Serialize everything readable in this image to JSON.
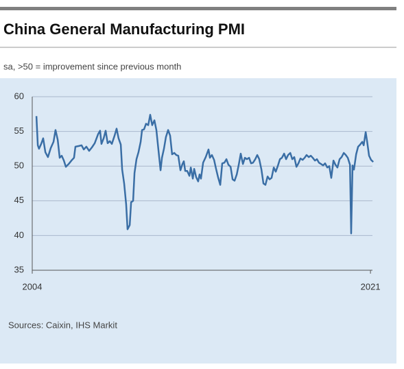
{
  "chart_data": {
    "type": "line",
    "title": "China General Manufacturing PMI",
    "subtitle": "sa, >50 = improvement since previous month",
    "source": "Sources: Caixin, IHS Markit",
    "xlim": [
      2004,
      2021.1
    ],
    "xticks": [
      2004,
      2021
    ],
    "ylim": [
      35,
      60
    ],
    "yticks": [
      35,
      40,
      45,
      50,
      55,
      60
    ],
    "grid": true,
    "series": [
      {
        "name": "PMI",
        "color": "#3a6ea5",
        "x": [
          2004.21,
          2004.28,
          2004.34,
          2004.45,
          2004.55,
          2004.66,
          2004.79,
          2004.93,
          2005.07,
          2005.17,
          2005.28,
          2005.38,
          2005.48,
          2005.59,
          2005.69,
          2005.83,
          2006.0,
          2006.1,
          2006.17,
          2006.34,
          2006.48,
          2006.59,
          2006.72,
          2006.86,
          2007.0,
          2007.14,
          2007.31,
          2007.41,
          2007.48,
          2007.59,
          2007.69,
          2007.79,
          2007.9,
          2008.0,
          2008.14,
          2008.24,
          2008.34,
          2008.45,
          2008.52,
          2008.62,
          2008.72,
          2008.79,
          2008.9,
          2008.97,
          2009.07,
          2009.14,
          2009.24,
          2009.34,
          2009.45,
          2009.52,
          2009.62,
          2009.72,
          2009.83,
          2009.93,
          2010.03,
          2010.14,
          2010.24,
          2010.34,
          2010.45,
          2010.52,
          2010.62,
          2010.72,
          2010.83,
          2010.93,
          2011.03,
          2011.14,
          2011.24,
          2011.34,
          2011.45,
          2011.55,
          2011.62,
          2011.69,
          2011.79,
          2011.9,
          2011.97,
          2012.07,
          2012.14,
          2012.24,
          2012.34,
          2012.41,
          2012.48,
          2012.59,
          2012.72,
          2012.86,
          2012.93,
          2013.03,
          2013.14,
          2013.24,
          2013.34,
          2013.45,
          2013.55,
          2013.66,
          2013.76,
          2013.86,
          2013.97,
          2014.07,
          2014.17,
          2014.28,
          2014.38,
          2014.48,
          2014.59,
          2014.69,
          2014.79,
          2014.9,
          2015.0,
          2015.1,
          2015.21,
          2015.31,
          2015.41,
          2015.52,
          2015.62,
          2015.72,
          2015.83,
          2015.93,
          2016.03,
          2016.14,
          2016.24,
          2016.34,
          2016.45,
          2016.55,
          2016.66,
          2016.76,
          2016.86,
          2016.97,
          2017.07,
          2017.17,
          2017.28,
          2017.38,
          2017.48,
          2017.59,
          2017.69,
          2017.79,
          2017.9,
          2018.0,
          2018.1,
          2018.21,
          2018.31,
          2018.41,
          2018.52,
          2018.62,
          2018.72,
          2018.83,
          2018.93,
          2019.03,
          2019.14,
          2019.24,
          2019.34,
          2019.45,
          2019.55,
          2019.66,
          2019.76,
          2019.86,
          2019.97,
          2020.03,
          2020.1,
          2020.17,
          2020.28,
          2020.38,
          2020.48,
          2020.59,
          2020.66,
          2020.76,
          2020.83,
          2020.93,
          2021.03,
          2021.14
        ],
        "values": [
          57.2,
          53,
          52.5,
          53.2,
          54,
          52,
          51.3,
          52.6,
          53.5,
          55.2,
          53.8,
          51.2,
          51.5,
          50.8,
          49.9,
          50.3,
          50.9,
          51.2,
          52.8,
          52.9,
          53,
          52.4,
          52.8,
          52.2,
          52.7,
          53.3,
          54.6,
          55.1,
          53.2,
          54,
          55.1,
          53.3,
          53.6,
          53.2,
          54.4,
          55.4,
          54,
          53.1,
          49.5,
          47.5,
          44.5,
          40.9,
          41.5,
          44.8,
          45,
          49,
          51,
          52,
          53.5,
          55.2,
          55.3,
          56.1,
          55.9,
          57.4,
          55.9,
          56.6,
          55.2,
          52.4,
          49.4,
          51.2,
          52.5,
          54.2,
          55.2,
          54.4,
          51.7,
          51.9,
          51.6,
          51.5,
          49.4,
          50.3,
          50.7,
          49.3,
          49.3,
          48.6,
          49.8,
          48.2,
          49.6,
          48.4,
          47.8,
          48.8,
          48.2,
          50.5,
          51.3,
          52.4,
          51.2,
          51.6,
          50.9,
          49.6,
          48.4,
          47.3,
          50.4,
          50.5,
          51,
          50.2,
          49.9,
          48.1,
          47.9,
          48.8,
          50.2,
          51.8,
          50.3,
          51.2,
          51,
          51.2,
          50.4,
          50.5,
          51,
          51.6,
          51,
          49.5,
          47.5,
          47.3,
          48.5,
          48.1,
          48.3,
          49.8,
          49.2,
          50,
          51,
          51.2,
          51.8,
          51,
          51.6,
          51.9,
          51,
          51.3,
          49.9,
          50.4,
          51.1,
          50.9,
          51.2,
          51.6,
          51.3,
          51.5,
          51.2,
          50.8,
          51,
          50.5,
          50.3,
          50.1,
          50.4,
          49.8,
          50,
          48.3,
          50.8,
          50.2,
          49.8,
          51,
          51.3,
          51.9,
          51.6,
          51.2,
          50.2,
          40.3,
          50.1,
          49.5,
          51.7,
          52.8,
          53.1,
          53.5,
          53,
          54.9,
          53.6,
          51.5,
          50.9,
          50.6
        ]
      }
    ]
  }
}
